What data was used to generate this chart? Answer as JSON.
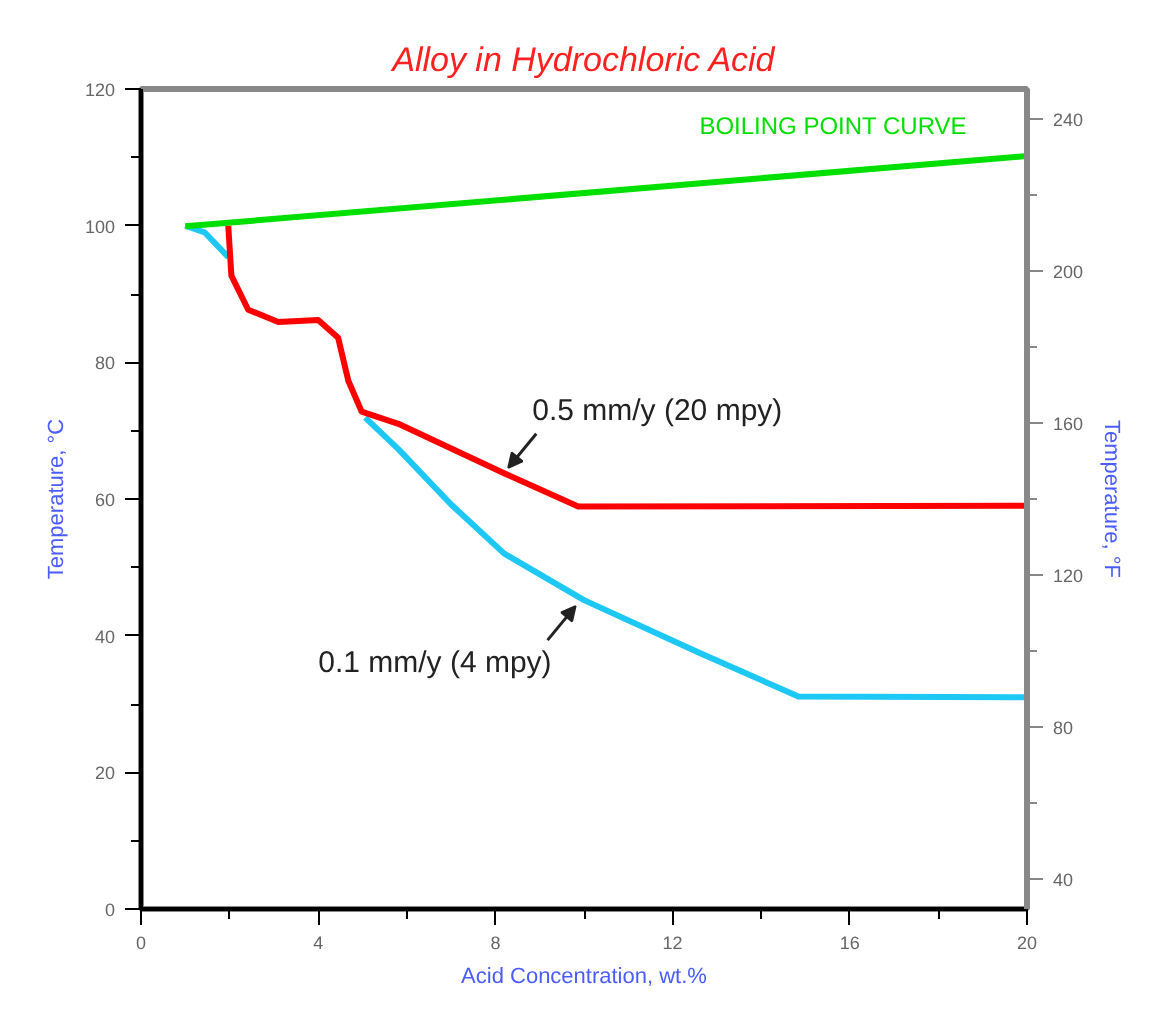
{
  "chart_data": {
    "type": "line",
    "title": "Alloy in Hydrochloric Acid",
    "xlabel": "Acid Concentration, wt.%",
    "ylabel": "Temperature, °C",
    "y2label": "Temperature, °F",
    "xlim": [
      0,
      20
    ],
    "xticks": [
      0,
      {
        "value": 2,
        "label": null
      },
      4,
      {
        "value": 6,
        "label": null
      },
      8,
      {
        "value": 10,
        "label": null
      },
      12,
      {
        "value": 14,
        "label": null
      },
      16,
      {
        "value": 18,
        "label": null
      },
      20
    ],
    "ylim": [
      0,
      120
    ],
    "yticks": [
      0,
      {
        "value": 10,
        "label": null
      },
      20,
      {
        "value": 30,
        "label": null
      },
      40,
      {
        "value": 50,
        "label": null
      },
      60,
      {
        "value": 70,
        "label": null
      },
      80,
      {
        "value": 90,
        "label": null
      },
      100,
      {
        "value": 110,
        "label": null
      },
      120
    ],
    "y2lim": [
      32,
      248
    ],
    "y2ticks": [
      40,
      {
        "value": 60,
        "label": null
      },
      80,
      {
        "value": 100,
        "label": null
      },
      120,
      {
        "value": 140,
        "label": null
      },
      160,
      {
        "value": 180,
        "label": null
      },
      200,
      {
        "value": 220,
        "label": null
      },
      240
    ],
    "grid": false,
    "legend": false,
    "marker": "none",
    "line_style": "solid",
    "series": [
      {
        "name": "BOILING POINT CURVE",
        "color": "#00e000",
        "x": [
          1,
          20
        ],
        "values": [
          99.9,
          110.2
        ]
      },
      {
        "color": "#ff0000",
        "x": [
          1.97,
          2.04,
          2.42,
          3.1,
          4.0,
          4.45,
          4.68,
          4.98,
          5.81,
          8.22,
          9.87,
          20
        ],
        "values": [
          100,
          92.7,
          87.7,
          85.9,
          86.2,
          83.6,
          77.3,
          72.8,
          71.0,
          63.7,
          58.9,
          59
        ]
      },
      {
        "color": "#1ec8f5",
        "x": [
          1,
          1.44,
          1.97,
          2.42,
          3.1,
          4.0,
          4.45,
          4.68,
          5.06,
          5.81,
          7.0,
          8.2,
          10.0,
          12.6,
          14.84,
          20
        ],
        "values": [
          100,
          99.0,
          95.4,
          null,
          null,
          null,
          null,
          null,
          71.9,
          67.3,
          59.2,
          52.0,
          45.2,
          37.5,
          31.1,
          31
        ]
      }
    ],
    "annotations": [
      {
        "text": "0.5 mm/y (20 mpy)",
        "x": 8.2,
        "y": 63.7
      },
      {
        "text": "0.1 mm/y (4 mpy)",
        "x": 9.9,
        "y": 45.2
      }
    ]
  }
}
